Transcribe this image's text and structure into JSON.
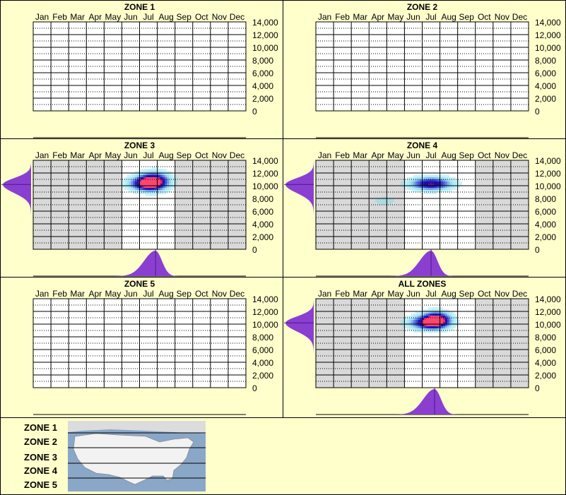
{
  "chart_data": [
    {
      "type": "heatmap",
      "title": "ZONE 1",
      "months": [
        "Jan",
        "Feb",
        "Mar",
        "Apr",
        "May",
        "Jun",
        "Jul",
        "Aug",
        "Sep",
        "Oct",
        "Nov",
        "Dec"
      ],
      "yticks": [
        "14,000",
        "12,000",
        "10,000",
        "8,000",
        "6,000",
        "4,000",
        "2,000",
        "0"
      ],
      "ylim": [
        0,
        14000
      ],
      "grey_background": false,
      "active_months": [],
      "hotspots": [],
      "side_profile": false,
      "bottom_profile": false
    },
    {
      "type": "heatmap",
      "title": "ZONE 2",
      "months": [
        "Jan",
        "Feb",
        "Mar",
        "Apr",
        "May",
        "Jun",
        "Jul",
        "Aug",
        "Sep",
        "Oct",
        "Nov",
        "Dec"
      ],
      "yticks": [
        "14,000",
        "12,000",
        "10,000",
        "8,000",
        "6,000",
        "4,000",
        "2,000",
        "0"
      ],
      "ylim": [
        0,
        14000
      ],
      "grey_background": false,
      "active_months": [],
      "hotspots": [],
      "side_profile": false,
      "bottom_profile": false
    },
    {
      "type": "heatmap",
      "title": "ZONE 3",
      "months": [
        "Jan",
        "Feb",
        "Mar",
        "Apr",
        "May",
        "Jun",
        "Jul",
        "Aug",
        "Sep",
        "Oct",
        "Nov",
        "Dec"
      ],
      "yticks": [
        "14,000",
        "12,000",
        "10,000",
        "8,000",
        "6,000",
        "4,000",
        "2,000",
        "0"
      ],
      "ylim": [
        0,
        14000
      ],
      "grey_background": true,
      "active_months": [
        6,
        7,
        8
      ],
      "hotspots": [
        {
          "month": 7.3,
          "elevation": 10700,
          "intensity": 1.0,
          "spread_x": 0.55,
          "spread_y": 900
        },
        {
          "month": 6.8,
          "elevation": 10300,
          "intensity": 0.7,
          "spread_x": 0.6,
          "spread_y": 700
        }
      ],
      "side_profile": true,
      "side_peak_elevation": 10200,
      "bottom_profile": true,
      "bottom_peak_month": 7.4
    },
    {
      "type": "heatmap",
      "title": "ZONE 4",
      "months": [
        "Jan",
        "Feb",
        "Mar",
        "Apr",
        "May",
        "Jun",
        "Jul",
        "Aug",
        "Sep",
        "Oct",
        "Nov",
        "Dec"
      ],
      "yticks": [
        "14,000",
        "12,000",
        "10,000",
        "8,000",
        "6,000",
        "4,000",
        "2,000",
        "0"
      ],
      "ylim": [
        0,
        14000
      ],
      "grey_background": true,
      "active_months": [
        6,
        7,
        8,
        9
      ],
      "hotspots": [
        {
          "month": 7.0,
          "elevation": 10300,
          "intensity": 0.85,
          "spread_x": 0.75,
          "spread_y": 650
        },
        {
          "month": 4.4,
          "elevation": 7600,
          "intensity": 0.12,
          "spread_x": 0.5,
          "spread_y": 500
        }
      ],
      "side_profile": true,
      "side_peak_elevation": 10200,
      "bottom_profile": true,
      "bottom_peak_month": 7.0
    },
    {
      "type": "heatmap",
      "title": "ZONE 5",
      "months": [
        "Jan",
        "Feb",
        "Mar",
        "Apr",
        "May",
        "Jun",
        "Jul",
        "Aug",
        "Sep",
        "Oct",
        "Nov",
        "Dec"
      ],
      "yticks": [
        "14,000",
        "12,000",
        "10,000",
        "8,000",
        "6,000",
        "4,000",
        "2,000",
        "0"
      ],
      "ylim": [
        0,
        14000
      ],
      "grey_background": false,
      "active_months": [],
      "hotspots": [],
      "side_profile": false,
      "bottom_profile": false
    },
    {
      "type": "heatmap",
      "title": "ALL ZONES",
      "months": [
        "Jan",
        "Feb",
        "Mar",
        "Apr",
        "May",
        "Jun",
        "Jul",
        "Aug",
        "Sep",
        "Oct",
        "Nov",
        "Dec"
      ],
      "yticks": [
        "14,000",
        "12,000",
        "10,000",
        "8,000",
        "6,000",
        "4,000",
        "2,000",
        "0"
      ],
      "ylim": [
        0,
        14000
      ],
      "grey_background": true,
      "active_months": [
        6,
        7,
        8,
        9
      ],
      "hotspots": [
        {
          "month": 7.3,
          "elevation": 10700,
          "intensity": 1.0,
          "spread_x": 0.5,
          "spread_y": 800
        },
        {
          "month": 6.8,
          "elevation": 10200,
          "intensity": 0.75,
          "spread_x": 0.7,
          "spread_y": 700
        }
      ],
      "side_profile": true,
      "side_peak_elevation": 10200,
      "bottom_profile": true,
      "bottom_peak_month": 7.2
    }
  ],
  "legend": {
    "zones": [
      "ZONE 1",
      "ZONE 2",
      "ZONE 3",
      "ZONE 4",
      "ZONE 5"
    ],
    "map_icon": "us-map-zones-icon"
  },
  "colors": {
    "background": "#ffffcc",
    "grid_grey": "#d9d9d9",
    "profile_purple": "#8a3fd1",
    "hot_core": "#ff3b7a",
    "hot_mid": "#1a1acc",
    "hot_outer": "#44ccdd",
    "map_water": "#8aa7c8",
    "map_land": "#f2f2f2"
  }
}
